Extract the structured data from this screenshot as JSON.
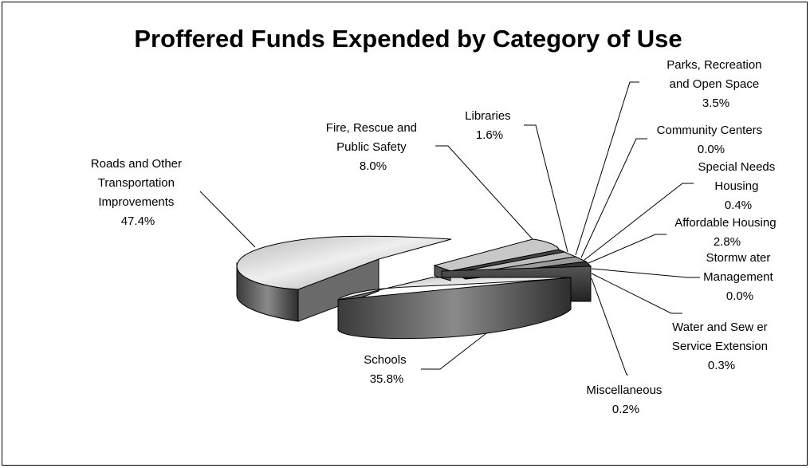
{
  "chart_data": {
    "type": "pie",
    "title": "Proffered Funds Expended by Category of Use",
    "series": [
      {
        "name": "Roads and Other Transportation Improvements",
        "label_lines": [
          "Roads and Other",
          "Transportation",
          "Improvements",
          "47.4%"
        ],
        "value": 47.4
      },
      {
        "name": "Schools",
        "label_lines": [
          "Schools",
          "35.8%"
        ],
        "value": 35.8
      },
      {
        "name": "Fire, Rescue and Public Safety",
        "label_lines": [
          "Fire, Rescue and",
          "Public Safety",
          "8.0%"
        ],
        "value": 8.0
      },
      {
        "name": "Libraries",
        "label_lines": [
          "Libraries",
          "1.6%"
        ],
        "value": 1.6
      },
      {
        "name": "Parks, Recreation and Open Space",
        "label_lines": [
          "Parks, Recreation",
          "and Open Space",
          "3.5%"
        ],
        "value": 3.5
      },
      {
        "name": "Community Centers",
        "label_lines": [
          "Community Centers",
          "0.0%"
        ],
        "value": 0.0
      },
      {
        "name": "Special Needs Housing",
        "label_lines": [
          "Special Needs",
          "Housing",
          "0.4%"
        ],
        "value": 0.4
      },
      {
        "name": "Affordable Housing",
        "label_lines": [
          "Affordable Housing",
          "2.8%"
        ],
        "value": 2.8
      },
      {
        "name": "Stormwater Management",
        "label_lines": [
          "Stormw ater",
          "Management",
          "0.0%"
        ],
        "value": 0.0
      },
      {
        "name": "Water and Sewer Service Extension",
        "label_lines": [
          "Water and Sew er",
          "Service Extension",
          "0.3%"
        ],
        "value": 0.3
      },
      {
        "name": "Miscellaneous",
        "label_lines": [
          "Miscellaneous",
          "0.2%"
        ],
        "value": 0.2
      }
    ]
  }
}
